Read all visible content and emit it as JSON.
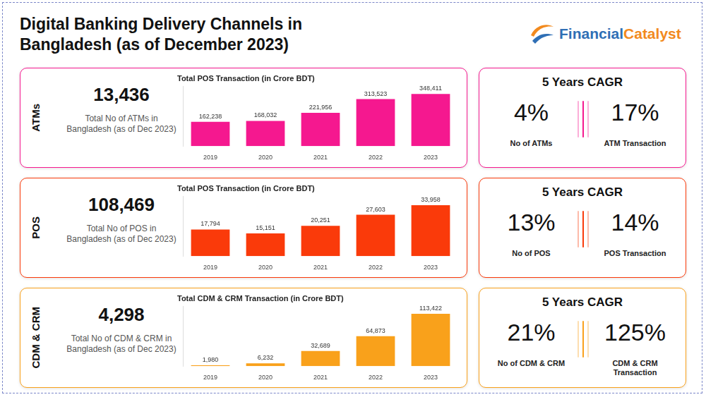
{
  "title": "Digital Banking Delivery Channels in Bangladesh (as of December 2023)",
  "logo": [
    "Financial",
    "Catalyst"
  ],
  "chart_data": [
    {
      "type": "bar",
      "title": "Total POS Transaction (in Crore BDT)",
      "categories": [
        "2019",
        "2020",
        "2021",
        "2022",
        "2023"
      ],
      "values": [
        162238,
        168032,
        221956,
        313523,
        348411
      ],
      "value_labels": [
        "162,238",
        "168,032",
        "221,956",
        "313,523",
        "348,411"
      ],
      "color": "#f5188f",
      "ylim": [
        0,
        400000
      ],
      "grid": false,
      "tick_labels": "x",
      "data_labels": true
    },
    {
      "type": "bar",
      "title": "Total POS Transaction (in Crore BDT)",
      "categories": [
        "2019",
        "2020",
        "2021",
        "2022",
        "2023"
      ],
      "values": [
        17794,
        15151,
        20251,
        27603,
        33958
      ],
      "value_labels": [
        "17,794",
        "15,151",
        "20,251",
        "27,603",
        "33,958"
      ],
      "color": "#fa3a0a",
      "ylim": [
        0,
        40000
      ],
      "grid": false,
      "tick_labels": "x",
      "data_labels": true
    },
    {
      "type": "bar",
      "title": "Total CDM & CRM Transaction (in Crore BDT)",
      "categories": [
        "2019",
        "2020",
        "2021",
        "2022",
        "2023"
      ],
      "values": [
        1980,
        6232,
        32689,
        64873,
        113422
      ],
      "value_labels": [
        "1,980",
        "6,232",
        "32,689",
        "64,873",
        "113,422"
      ],
      "color": "#f9a11b",
      "ylim": [
        0,
        130000
      ],
      "grid": false,
      "tick_labels": "x",
      "data_labels": true
    }
  ],
  "panels": [
    {
      "label": "ATMs",
      "count": "13,436",
      "count_caption": "Total No of ATMs in Bangladesh (as of Dec 2023)",
      "cagr_title": "5 Years CAGR",
      "cagr": [
        {
          "value": "4%",
          "caption": "No of ATMs"
        },
        {
          "value": "17%",
          "caption": "ATM Transaction"
        }
      ]
    },
    {
      "label": "POS",
      "count": "108,469",
      "count_caption": "Total No of POS in Bangladesh (as of Dec 2023)",
      "cagr_title": "5 Years CAGR",
      "cagr": [
        {
          "value": "13%",
          "caption": "No of POS"
        },
        {
          "value": "14%",
          "caption": "POS Transaction"
        }
      ]
    },
    {
      "label": "CDM & CRM",
      "count": "4,298",
      "count_caption": "Total No of CDM & CRM in Bangladesh (as of Dec 2023)",
      "cagr_title": "5 Years CAGR",
      "cagr": [
        {
          "value": "21%",
          "caption": "No of CDM & CRM"
        },
        {
          "value": "125%",
          "caption": "CDM & CRM Transaction"
        }
      ]
    }
  ]
}
